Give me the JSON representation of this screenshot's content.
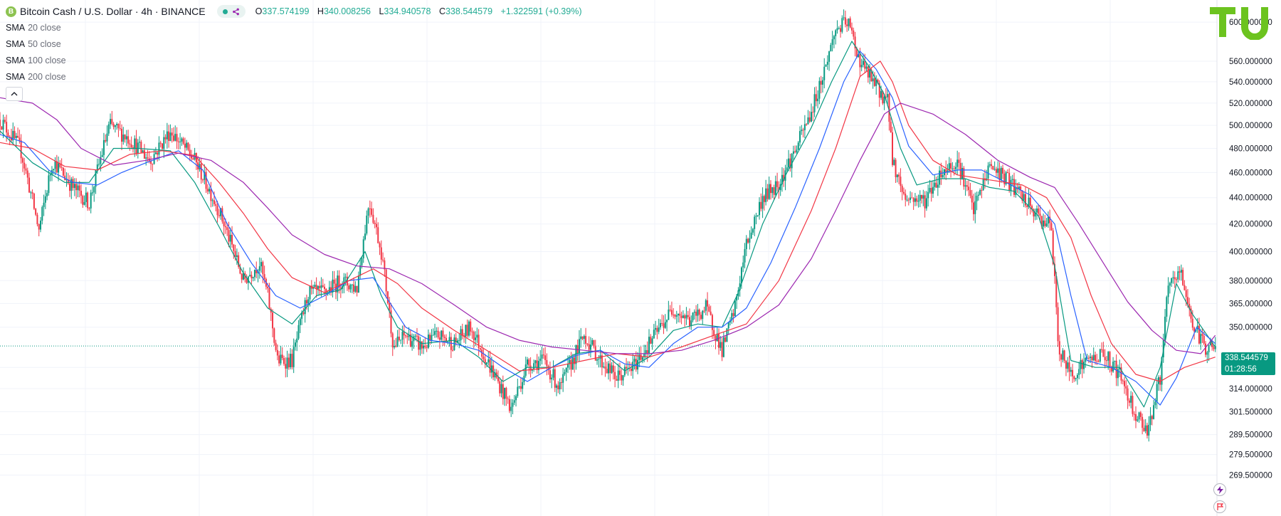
{
  "header": {
    "symbol_title": "Bitcoin Cash / U.S. Dollar · 4h · BINANCE",
    "coin_glyph": "B",
    "ohlc": {
      "o_label": "O",
      "o_value": "337.574199",
      "h_label": "H",
      "h_value": "340.008256",
      "l_label": "L",
      "l_value": "334.940578",
      "c_label": "C",
      "c_value": "338.544579",
      "change": "+1.322591 (+0.39%)"
    }
  },
  "indicators": [
    {
      "label": "SMA",
      "arg": "20 close",
      "color": "#089981"
    },
    {
      "label": "SMA",
      "arg": "50 close",
      "color": "#2962ff"
    },
    {
      "label": "SMA",
      "arg": "100 close",
      "color": "#f23645"
    },
    {
      "label": "SMA",
      "arg": "200 close",
      "color": "#9c27b0"
    }
  ],
  "price_badge": {
    "price": "338.544579",
    "countdown": "01:28:56"
  },
  "colors": {
    "up": "#089981",
    "down": "#f23645",
    "grid": "#f0f3fa",
    "axis_text": "#131722"
  },
  "icons": {
    "logo": "tu-logo",
    "collapse": "chevron-up-icon",
    "alert": "lightning-icon",
    "flag": "flag-icon"
  },
  "chart_data": {
    "type": "candlestick",
    "title": "Bitcoin Cash / U.S. Dollar · 4h · BINANCE",
    "timeframe": "4h",
    "y_axis": {
      "scale": "log",
      "ticks": [
        "600.000000",
        "560.000000",
        "540.000000",
        "520.000000",
        "500.000000",
        "480.000000",
        "460.000000",
        "440.000000",
        "420.000000",
        "400.000000",
        "380.000000",
        "365.000000",
        "350.000000",
        "338.544579",
        "326.000000",
        "314.000000",
        "301.500000",
        "289.500000",
        "279.500000",
        "269.500000"
      ],
      "tick_values": [
        600,
        560,
        540,
        520,
        500,
        480,
        460,
        440,
        420,
        400,
        380,
        365,
        350,
        326,
        314,
        301.5,
        289.5,
        279.5,
        269.5
      ],
      "range": [
        262,
        620
      ]
    },
    "grid": true,
    "last_price": 338.544579,
    "price_path": [
      [
        0,
        505
      ],
      [
        25,
        480
      ],
      [
        48,
        415
      ],
      [
        65,
        470
      ],
      [
        90,
        448
      ],
      [
        110,
        436
      ],
      [
        135,
        500
      ],
      [
        160,
        488
      ],
      [
        185,
        470
      ],
      [
        210,
        495
      ],
      [
        240,
        470
      ],
      [
        270,
        430
      ],
      [
        300,
        380
      ],
      [
        320,
        392
      ],
      [
        330,
        370
      ],
      [
        342,
        330
      ],
      [
        360,
        330
      ],
      [
        380,
        372
      ],
      [
        400,
        372
      ],
      [
        420,
        380
      ],
      [
        440,
        375
      ],
      [
        455,
        438
      ],
      [
        470,
        400
      ],
      [
        485,
        338
      ],
      [
        500,
        345
      ],
      [
        520,
        338
      ],
      [
        540,
        345
      ],
      [
        560,
        340
      ],
      [
        580,
        350
      ],
      [
        600,
        330
      ],
      [
        630,
        303
      ],
      [
        650,
        328
      ],
      [
        670,
        330
      ],
      [
        690,
        314
      ],
      [
        720,
        345
      ],
      [
        740,
        330
      ],
      [
        760,
        320
      ],
      [
        780,
        326
      ],
      [
        800,
        340
      ],
      [
        830,
        362
      ],
      [
        850,
        354
      ],
      [
        870,
        362
      ],
      [
        890,
        336
      ],
      [
        905,
        360
      ],
      [
        920,
        405
      ],
      [
        940,
        440
      ],
      [
        960,
        452
      ],
      [
        980,
        478
      ],
      [
        1000,
        512
      ],
      [
        1015,
        548
      ],
      [
        1030,
        592
      ],
      [
        1045,
        600
      ],
      [
        1060,
        560
      ],
      [
        1080,
        535
      ],
      [
        1095,
        520
      ],
      [
        1100,
        470
      ],
      [
        1115,
        440
      ],
      [
        1140,
        438
      ],
      [
        1160,
        460
      ],
      [
        1180,
        470
      ],
      [
        1200,
        430
      ],
      [
        1220,
        466
      ],
      [
        1240,
        455
      ],
      [
        1260,
        440
      ],
      [
        1280,
        425
      ],
      [
        1295,
        420
      ],
      [
        1305,
        336
      ],
      [
        1320,
        322
      ],
      [
        1340,
        330
      ],
      [
        1360,
        334
      ],
      [
        1380,
        322
      ],
      [
        1400,
        300
      ],
      [
        1415,
        292
      ],
      [
        1430,
        320
      ],
      [
        1440,
        375
      ],
      [
        1455,
        386
      ],
      [
        1470,
        352
      ],
      [
        1485,
        338
      ],
      [
        1498,
        338.544579
      ]
    ],
    "sma_series": [
      {
        "name": "SMA 20 close",
        "color": "#089981",
        "path": [
          [
            0,
            495
          ],
          [
            40,
            468
          ],
          [
            80,
            452
          ],
          [
            110,
            452
          ],
          [
            140,
            480
          ],
          [
            170,
            480
          ],
          [
            210,
            478
          ],
          [
            240,
            452
          ],
          [
            270,
            418
          ],
          [
            300,
            385
          ],
          [
            330,
            362
          ],
          [
            360,
            352
          ],
          [
            390,
            370
          ],
          [
            420,
            374
          ],
          [
            450,
            400
          ],
          [
            470,
            370
          ],
          [
            490,
            350
          ],
          [
            520,
            340
          ],
          [
            560,
            342
          ],
          [
            590,
            332
          ],
          [
            620,
            318
          ],
          [
            650,
            326
          ],
          [
            680,
            326
          ],
          [
            710,
            334
          ],
          [
            740,
            336
          ],
          [
            770,
            324
          ],
          [
            800,
            332
          ],
          [
            830,
            348
          ],
          [
            860,
            352
          ],
          [
            890,
            350
          ],
          [
            910,
            372
          ],
          [
            940,
            420
          ],
          [
            970,
            460
          ],
          [
            1000,
            498
          ],
          [
            1025,
            540
          ],
          [
            1050,
            580
          ],
          [
            1070,
            556
          ],
          [
            1090,
            528
          ],
          [
            1110,
            480
          ],
          [
            1130,
            450
          ],
          [
            1160,
            455
          ],
          [
            1190,
            455
          ],
          [
            1220,
            448
          ],
          [
            1250,
            445
          ],
          [
            1280,
            426
          ],
          [
            1300,
            390
          ],
          [
            1320,
            330
          ],
          [
            1350,
            326
          ],
          [
            1380,
            326
          ],
          [
            1410,
            304
          ],
          [
            1430,
            326
          ],
          [
            1450,
            378
          ],
          [
            1470,
            358
          ],
          [
            1498,
            338
          ]
        ]
      },
      {
        "name": "SMA 50 close",
        "color": "#2962ff",
        "path": [
          [
            0,
            492
          ],
          [
            30,
            485
          ],
          [
            60,
            462
          ],
          [
            90,
            452
          ],
          [
            120,
            450
          ],
          [
            150,
            460
          ],
          [
            180,
            468
          ],
          [
            220,
            478
          ],
          [
            250,
            462
          ],
          [
            280,
            420
          ],
          [
            310,
            392
          ],
          [
            340,
            370
          ],
          [
            370,
            362
          ],
          [
            400,
            370
          ],
          [
            430,
            380
          ],
          [
            460,
            382
          ],
          [
            480,
            366
          ],
          [
            500,
            350
          ],
          [
            530,
            342
          ],
          [
            560,
            340
          ],
          [
            590,
            336
          ],
          [
            620,
            326
          ],
          [
            650,
            318
          ],
          [
            680,
            326
          ],
          [
            710,
            333
          ],
          [
            740,
            336
          ],
          [
            770,
            328
          ],
          [
            800,
            326
          ],
          [
            830,
            340
          ],
          [
            860,
            350
          ],
          [
            890,
            350
          ],
          [
            920,
            362
          ],
          [
            950,
            392
          ],
          [
            980,
            432
          ],
          [
            1010,
            480
          ],
          [
            1040,
            540
          ],
          [
            1060,
            570
          ],
          [
            1080,
            552
          ],
          [
            1100,
            525
          ],
          [
            1120,
            482
          ],
          [
            1150,
            458
          ],
          [
            1180,
            462
          ],
          [
            1210,
            462
          ],
          [
            1240,
            452
          ],
          [
            1270,
            442
          ],
          [
            1300,
            420
          ],
          [
            1320,
            370
          ],
          [
            1340,
            330
          ],
          [
            1370,
            326
          ],
          [
            1400,
            318
          ],
          [
            1430,
            305
          ],
          [
            1450,
            320
          ],
          [
            1475,
            350
          ],
          [
            1498,
            340
          ]
        ]
      },
      {
        "name": "SMA 100 close",
        "color": "#f23645",
        "path": [
          [
            0,
            485
          ],
          [
            40,
            480
          ],
          [
            80,
            465
          ],
          [
            120,
            462
          ],
          [
            160,
            475
          ],
          [
            200,
            478
          ],
          [
            240,
            474
          ],
          [
            270,
            452
          ],
          [
            300,
            428
          ],
          [
            330,
            402
          ],
          [
            360,
            382
          ],
          [
            400,
            372
          ],
          [
            430,
            380
          ],
          [
            460,
            388
          ],
          [
            490,
            378
          ],
          [
            520,
            362
          ],
          [
            560,
            348
          ],
          [
            600,
            336
          ],
          [
            640,
            324
          ],
          [
            680,
            326
          ],
          [
            720,
            330
          ],
          [
            760,
            334
          ],
          [
            800,
            332
          ],
          [
            840,
            338
          ],
          [
            880,
            345
          ],
          [
            920,
            352
          ],
          [
            960,
            380
          ],
          [
            1000,
            430
          ],
          [
            1030,
            480
          ],
          [
            1060,
            545
          ],
          [
            1085,
            560
          ],
          [
            1100,
            540
          ],
          [
            1120,
            500
          ],
          [
            1150,
            470
          ],
          [
            1180,
            458
          ],
          [
            1220,
            454
          ],
          [
            1260,
            450
          ],
          [
            1290,
            440
          ],
          [
            1320,
            410
          ],
          [
            1345,
            370
          ],
          [
            1370,
            340
          ],
          [
            1400,
            322
          ],
          [
            1430,
            318
          ],
          [
            1460,
            326
          ],
          [
            1498,
            332
          ]
        ]
      },
      {
        "name": "SMA 200 close",
        "color": "#9c27b0",
        "path": [
          [
            0,
            525
          ],
          [
            40,
            520
          ],
          [
            70,
            505
          ],
          [
            100,
            480
          ],
          [
            140,
            466
          ],
          [
            180,
            470
          ],
          [
            220,
            476
          ],
          [
            260,
            470
          ],
          [
            300,
            452
          ],
          [
            330,
            432
          ],
          [
            360,
            412
          ],
          [
            400,
            398
          ],
          [
            440,
            390
          ],
          [
            480,
            388
          ],
          [
            520,
            378
          ],
          [
            560,
            364
          ],
          [
            600,
            350
          ],
          [
            640,
            342
          ],
          [
            680,
            338
          ],
          [
            720,
            336
          ],
          [
            760,
            334
          ],
          [
            800,
            334
          ],
          [
            840,
            336
          ],
          [
            880,
            342
          ],
          [
            920,
            350
          ],
          [
            960,
            364
          ],
          [
            1000,
            395
          ],
          [
            1030,
            430
          ],
          [
            1060,
            470
          ],
          [
            1090,
            510
          ],
          [
            1110,
            520
          ],
          [
            1150,
            510
          ],
          [
            1190,
            492
          ],
          [
            1230,
            470
          ],
          [
            1270,
            456
          ],
          [
            1300,
            448
          ],
          [
            1330,
            420
          ],
          [
            1360,
            392
          ],
          [
            1390,
            366
          ],
          [
            1420,
            348
          ],
          [
            1450,
            336
          ],
          [
            1480,
            334
          ],
          [
            1498,
            345
          ]
        ]
      }
    ]
  }
}
